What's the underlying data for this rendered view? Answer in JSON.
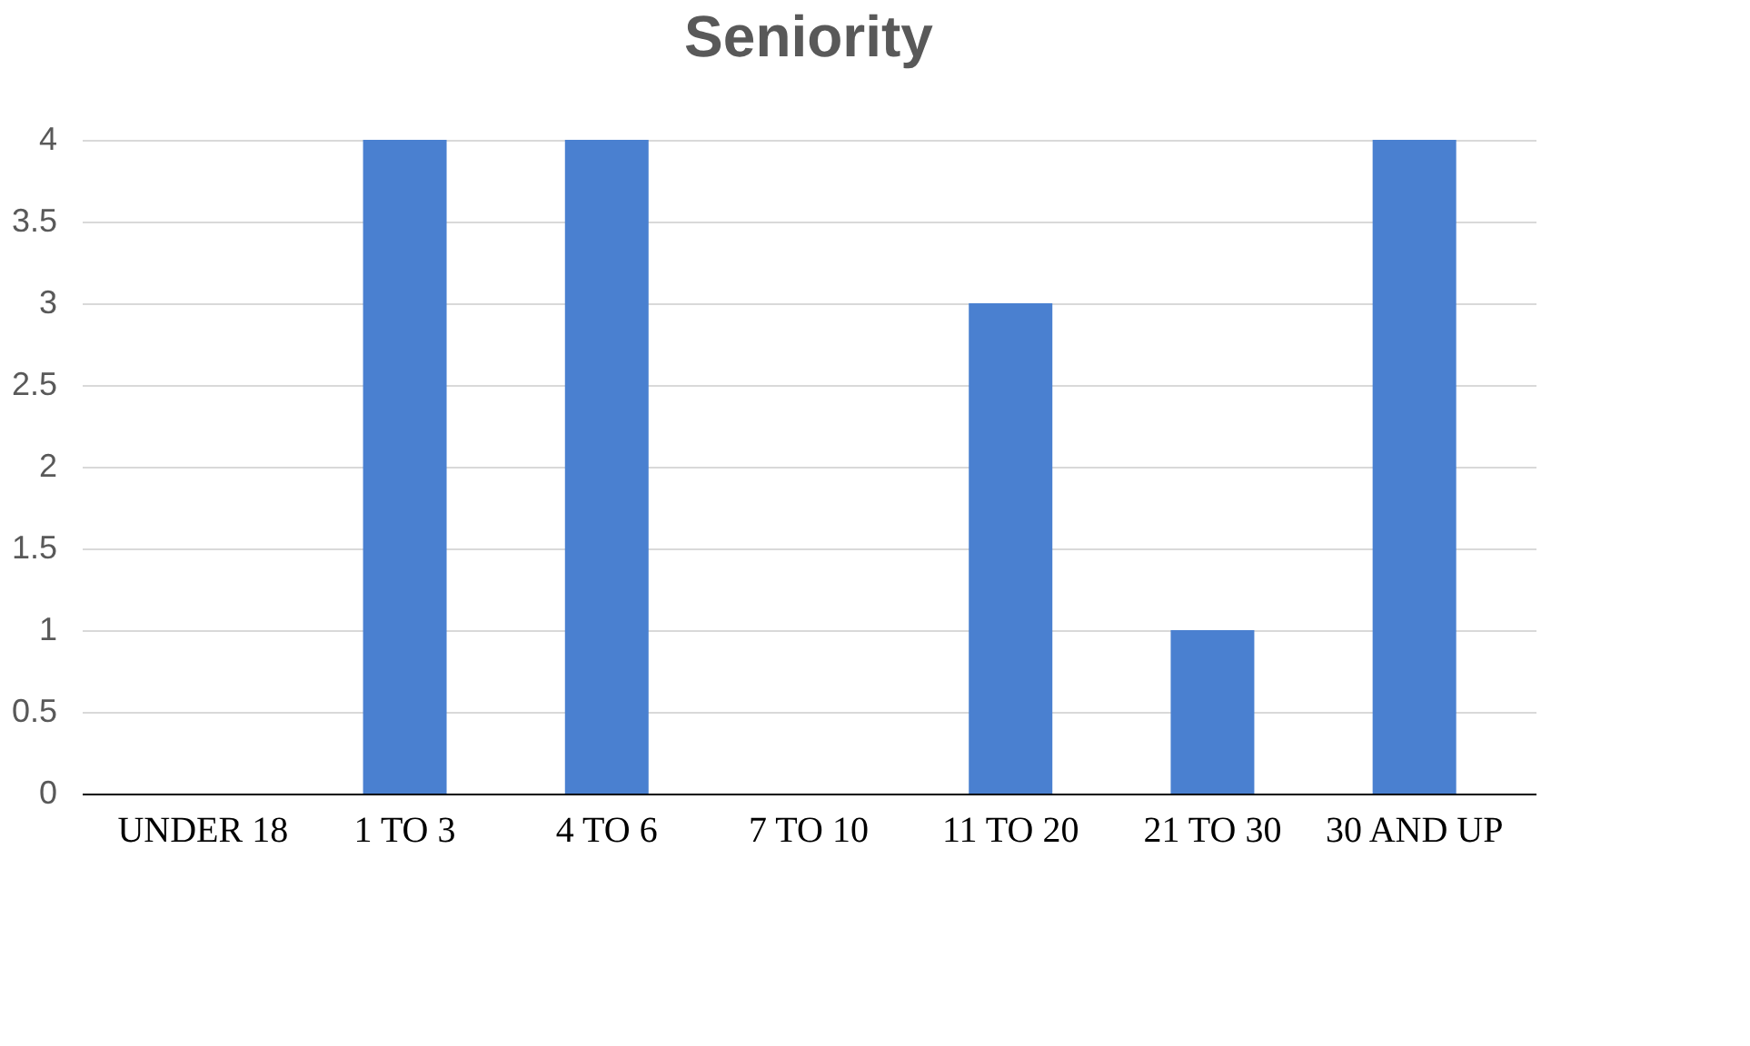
{
  "chart_data": {
    "type": "bar",
    "title": "Seniority",
    "categories": [
      "UNDER 18",
      "1 TO 3",
      "4 TO 6",
      "7 TO 10",
      "11 TO 20",
      "21 TO 30",
      "30 AND UP"
    ],
    "values": [
      0,
      4,
      4,
      0,
      3,
      1,
      4
    ],
    "color": "#4a80d0",
    "ylim": [
      0,
      4
    ],
    "yticks": [
      0,
      0.5,
      1,
      1.5,
      2,
      2.5,
      3,
      3.5,
      4
    ],
    "grid": "y",
    "legend": false
  }
}
